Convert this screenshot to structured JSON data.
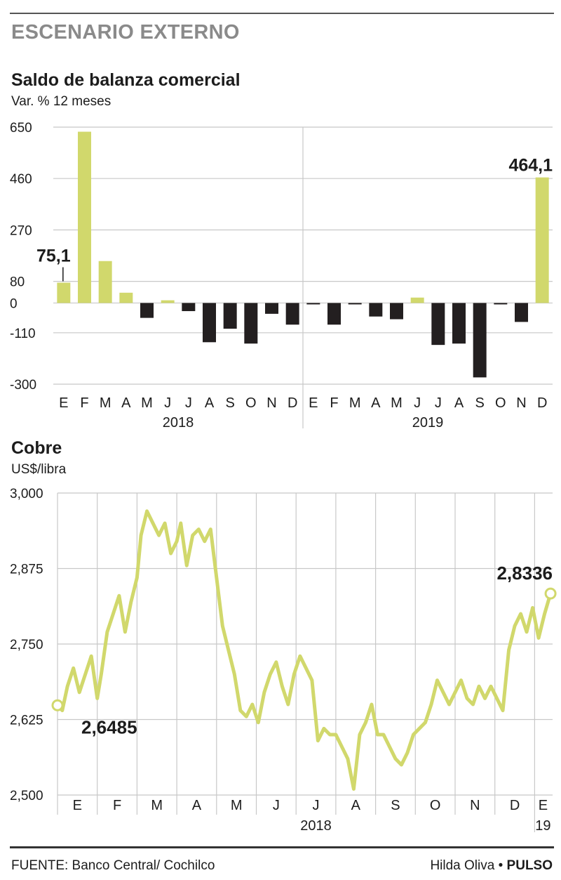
{
  "header": {
    "section_title": "ESCENARIO EXTERNO"
  },
  "colors": {
    "accent": "#d1d86c",
    "negative": "#231f20",
    "grid": "#c8c8c8",
    "text": "#1c1c1c"
  },
  "bar_chart": {
    "title": "Saldo de balanza comercial",
    "subtitle": "Var. % 12 meses"
  },
  "line_chart": {
    "title": "Cobre",
    "subtitle": "US$/libra"
  },
  "footer": {
    "source": "FUENTE: Banco Central/ Cochilco",
    "author": "Hilda Oliva",
    "separator": " • ",
    "publication": "PULSO"
  },
  "chart_data": [
    {
      "type": "bar",
      "title": "Saldo de balanza comercial",
      "ylabel": "Var. % 12 meses",
      "ylim": [
        -300,
        650
      ],
      "yticks": [
        650,
        460,
        270,
        80,
        0,
        -110,
        -300
      ],
      "ytick_labels": [
        "650",
        "460",
        "270",
        "80",
        "0",
        "-110",
        "-300"
      ],
      "categories": [
        "E",
        "F",
        "M",
        "A",
        "M",
        "J",
        "J",
        "A",
        "S",
        "O",
        "N",
        "D",
        "E",
        "F",
        "M",
        "A",
        "M",
        "J",
        "J",
        "A",
        "S",
        "O",
        "N",
        "D"
      ],
      "years": [
        {
          "label": "2018",
          "from": 0,
          "to": 11
        },
        {
          "label": "2019",
          "from": 12,
          "to": 23
        }
      ],
      "values": [
        75.1,
        633,
        155,
        38,
        -55,
        10,
        -30,
        -145,
        -95,
        -150,
        -40,
        -80,
        -5,
        -80,
        -5,
        -50,
        -60,
        20,
        -155,
        -150,
        -275,
        -5,
        -70,
        464.1
      ],
      "annotations": [
        {
          "index": 0,
          "text": "75,1"
        },
        {
          "index": 23,
          "text": "464,1"
        }
      ],
      "grid": true
    },
    {
      "type": "line",
      "title": "Cobre",
      "ylabel": "US$/libra",
      "ylim": [
        2.5,
        3.0
      ],
      "yticks": [
        3.0,
        2.875,
        2.75,
        2.625,
        2.5
      ],
      "ytick_labels": [
        "3,000",
        "2,875",
        "2,750",
        "2,625",
        "2,500"
      ],
      "x_months": [
        "E",
        "F",
        "M",
        "A",
        "M",
        "J",
        "J",
        "A",
        "S",
        "O",
        "N",
        "D",
        "E"
      ],
      "year_labels": [
        {
          "label": "2018",
          "month_index": 6
        },
        {
          "label": "19",
          "month_index": 12
        }
      ],
      "series": [
        {
          "x": [
            0,
            0.12,
            0.25,
            0.4,
            0.55,
            0.7,
            0.85,
            1.0,
            1.1,
            1.25,
            1.4,
            1.55,
            1.7,
            1.85,
            2.0,
            2.1,
            2.25,
            2.4,
            2.55,
            2.7,
            2.85,
            3.0,
            3.1,
            3.25,
            3.4,
            3.55,
            3.7,
            3.85,
            4.0,
            4.15,
            4.3,
            4.45,
            4.6,
            4.75,
            4.9,
            5.05,
            5.2,
            5.35,
            5.5,
            5.65,
            5.8,
            5.95,
            6.1,
            6.25,
            6.4,
            6.55,
            6.7,
            6.85,
            7.0,
            7.15,
            7.3,
            7.45,
            7.6,
            7.75,
            7.9,
            8.05,
            8.2,
            8.35,
            8.5,
            8.65,
            8.8,
            8.95,
            9.1,
            9.25,
            9.4,
            9.55,
            9.7,
            9.85,
            10.0,
            10.15,
            10.3,
            10.45,
            10.6,
            10.75,
            10.9,
            11.05,
            11.2,
            11.35,
            11.5,
            11.65,
            11.8,
            11.95,
            12.1,
            12.25,
            12.4
          ],
          "values": [
            2.6485,
            2.64,
            2.68,
            2.71,
            2.67,
            2.7,
            2.73,
            2.66,
            2.7,
            2.77,
            2.8,
            2.83,
            2.77,
            2.82,
            2.86,
            2.93,
            2.97,
            2.95,
            2.93,
            2.95,
            2.9,
            2.92,
            2.95,
            2.88,
            2.93,
            2.94,
            2.92,
            2.94,
            2.86,
            2.78,
            2.74,
            2.7,
            2.64,
            2.63,
            2.65,
            2.62,
            2.67,
            2.7,
            2.72,
            2.68,
            2.65,
            2.7,
            2.73,
            2.71,
            2.69,
            2.59,
            2.61,
            2.6,
            2.6,
            2.58,
            2.56,
            2.51,
            2.6,
            2.62,
            2.65,
            2.6,
            2.6,
            2.58,
            2.56,
            2.55,
            2.57,
            2.6,
            2.61,
            2.62,
            2.65,
            2.69,
            2.67,
            2.65,
            2.67,
            2.69,
            2.66,
            2.65,
            2.68,
            2.66,
            2.68,
            2.66,
            2.64,
            2.74,
            2.78,
            2.8,
            2.77,
            2.81,
            2.76,
            2.8,
            2.8336
          ]
        }
      ],
      "annotations": [
        {
          "point": "first",
          "text": "2,6485"
        },
        {
          "point": "last",
          "text": "2,8336"
        }
      ],
      "grid": true
    }
  ]
}
